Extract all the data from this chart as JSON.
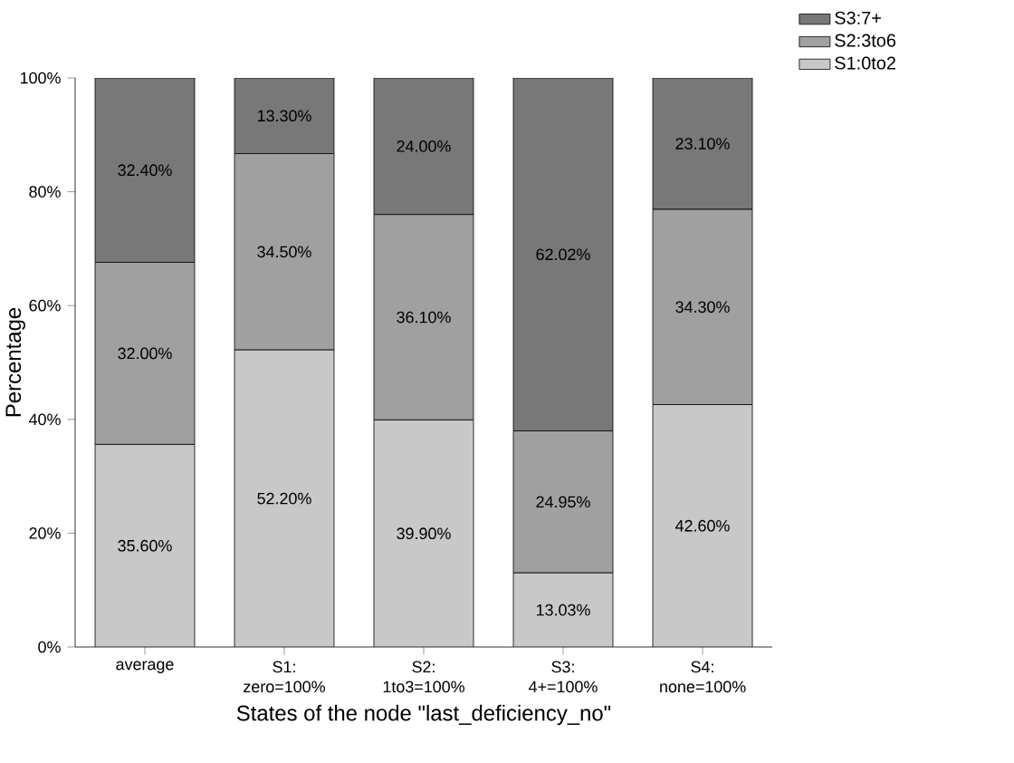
{
  "chart_data": {
    "type": "bar",
    "stacked": true,
    "xlabel": "States of the node \"last_deficiency_no\"",
    "ylabel": "Percentage",
    "categories": [
      "average",
      "S1: zero=100%",
      "S2: 1to3=100%",
      "S3: 4+=100%",
      "S4: none=100%"
    ],
    "ylim": [
      0,
      100
    ],
    "yticks": [
      {
        "value": 0,
        "label": "0%"
      },
      {
        "value": 20,
        "label": "20%"
      },
      {
        "value": 40,
        "label": "40%"
      },
      {
        "value": 60,
        "label": "60%"
      },
      {
        "value": 80,
        "label": "80%"
      },
      {
        "value": 100,
        "label": "100%"
      }
    ],
    "legend": "top right",
    "grid": false,
    "series": [
      {
        "name": "S1:0to2",
        "color": "#c8c8c8",
        "values": [
          35.6,
          52.2,
          39.9,
          13.03,
          42.6
        ],
        "value_labels": [
          "35.60%",
          "52.20%",
          "39.90%",
          "13.03%",
          "42.60%"
        ]
      },
      {
        "name": "S2:3to6",
        "color": "#a0a0a0",
        "values": [
          32.0,
          34.5,
          36.1,
          24.95,
          34.3
        ],
        "value_labels": [
          "32.00%",
          "34.50%",
          "36.10%",
          "24.95%",
          "34.30%"
        ]
      },
      {
        "name": "S3:7+",
        "color": "#787878",
        "values": [
          32.4,
          13.3,
          24.0,
          62.02,
          23.1
        ],
        "value_labels": [
          "32.40%",
          "13.30%",
          "24.00%",
          "62.02%",
          "23.10%"
        ]
      }
    ]
  }
}
